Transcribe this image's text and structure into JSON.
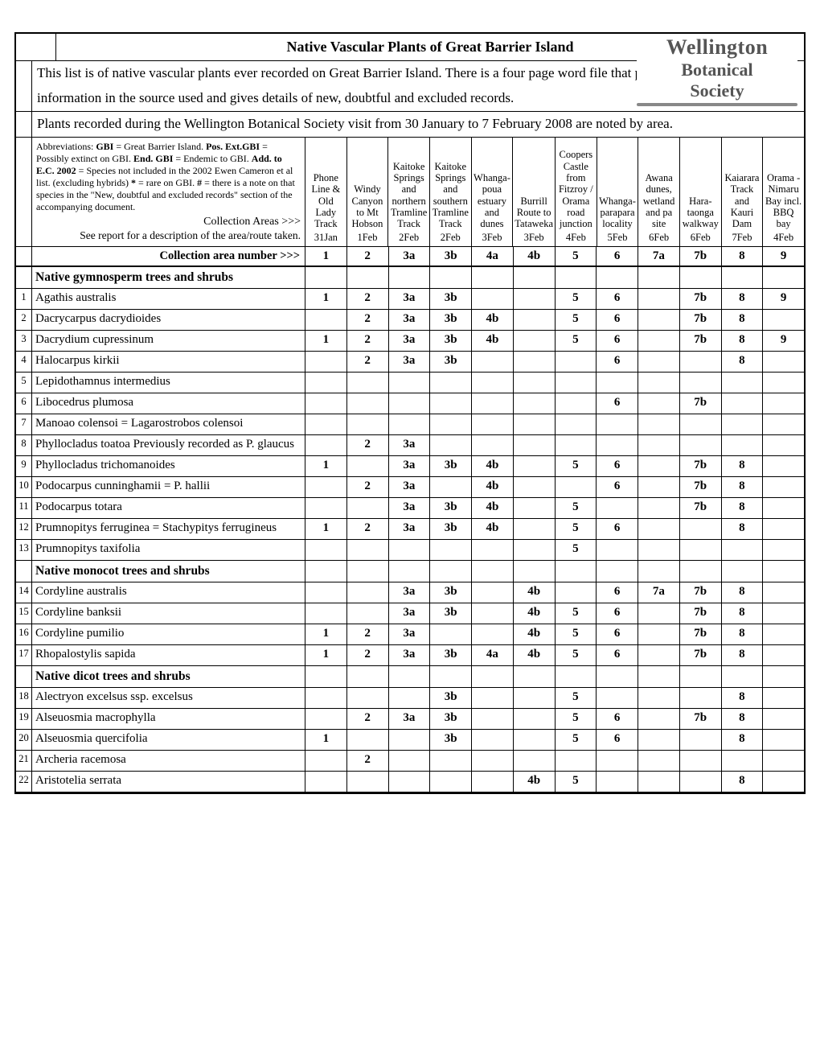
{
  "title": "Native Vascular Plants of Great Barrier Island",
  "logo": {
    "l1": "Wellington",
    "l2": "Botanical",
    "l3": "Society"
  },
  "intro1": "This list is of native vascular plants ever recorded on Great Barrier Island.  There is a four page word file that provides",
  "intro2": "information in the source used and gives details of new, doubtful and  excluded records.",
  "intro3": "Plants recorded during the Wellington Botanical Society visit from 30 January to 7 February 2008 are noted by area.",
  "abbrev_html": "Abbreviations: <b>GBI</b> = Great Barrier Island.  <b>Pos. Ext.GBI</b> = Possibly extinct on GBI. <b>End. GBI</b> = Endemic to GBI.  <b>Add. to E.C. 2002</b> = Species not included in the 2002 Ewen Cameron et al list. (excluding hybrids)  <b>*</b> = rare on GBI.  <b>#</b> = there is a note on that species in the \"New, doubtful and excluded records\" section of the accompanying document.",
  "coll_areas_label": "Collection Areas >>>",
  "see_report_label": "See report for a description of the area/route taken.",
  "area_num_label": "Collection area number  >>>",
  "columns": [
    {
      "desc": "Phone Line & Old Lady Track",
      "date": "31Jan",
      "num": "1"
    },
    {
      "desc": "Windy Canyon to Mt Hobson",
      "date": "1Feb",
      "num": "2"
    },
    {
      "desc": "Kaitoke Springs and northern Tramline Track",
      "date": "2Feb",
      "num": "3a"
    },
    {
      "desc": "Kaitoke Springs and southern Tramline Track",
      "date": "2Feb",
      "num": "3b"
    },
    {
      "desc": "Whanga-poua estuary and dunes",
      "date": "3Feb",
      "num": "4a"
    },
    {
      "desc": "Burrill Route to Tataweka",
      "date": "3Feb",
      "num": "4b"
    },
    {
      "desc": "Coopers Castle from Fitzroy / Orama road junction",
      "date": "4Feb",
      "num": "5"
    },
    {
      "desc": "Whanga-parapara locality",
      "date": "5Feb",
      "num": "6"
    },
    {
      "desc": "Awana dunes, wetland and pa site",
      "date": "6Feb",
      "num": "7a"
    },
    {
      "desc": "Hara-taonga walkway",
      "date": "6Feb",
      "num": "7b"
    },
    {
      "desc": "Kaiarara Track and Kauri Dam",
      "date": "7Feb",
      "num": "8"
    },
    {
      "desc": "Orama - Nimaru Bay incl. BBQ bay",
      "date": "4Feb",
      "num": "9"
    }
  ],
  "sections": [
    {
      "title": "Native gymnosperm trees and shrubs",
      "rows": [
        {
          "n": "1",
          "name": "Agathis australis",
          "v": [
            "1",
            "2",
            "3a",
            "3b",
            "",
            "",
            "5",
            "6",
            "",
            "7b",
            "8",
            "9"
          ]
        },
        {
          "n": "2",
          "name": "Dacrycarpus dacrydioides",
          "v": [
            "",
            "2",
            "3a",
            "3b",
            "4b",
            "",
            "5",
            "6",
            "",
            "7b",
            "8",
            ""
          ]
        },
        {
          "n": "3",
          "name": "Dacrydium cupressinum",
          "v": [
            "1",
            "2",
            "3a",
            "3b",
            "4b",
            "",
            "5",
            "6",
            "",
            "7b",
            "8",
            "9"
          ]
        },
        {
          "n": "4",
          "name": "Halocarpus kirkii",
          "v": [
            "",
            "2",
            "3a",
            "3b",
            "",
            "",
            "",
            "6",
            "",
            "",
            "8",
            ""
          ]
        },
        {
          "n": "5",
          "name": "Lepidothamnus intermedius",
          "v": [
            "",
            "",
            "",
            "",
            "",
            "",
            "",
            "",
            "",
            "",
            "",
            ""
          ]
        },
        {
          "n": "6",
          "name": "Libocedrus plumosa",
          "v": [
            "",
            "",
            "",
            "",
            "",
            "",
            "",
            "6",
            "",
            "7b",
            "",
            ""
          ]
        },
        {
          "n": "7",
          "name": "Manoao colensoi   = Lagarostrobos colensoi",
          "v": [
            "",
            "",
            "",
            "",
            "",
            "",
            "",
            "",
            "",
            "",
            "",
            ""
          ]
        },
        {
          "n": "8",
          "name": "Phyllocladus toatoa   Previously recorded as  P. glaucus",
          "v": [
            "",
            "2",
            "3a",
            "",
            "",
            "",
            "",
            "",
            "",
            "",
            "",
            ""
          ]
        },
        {
          "n": "9",
          "name": "Phyllocladus trichomanoides",
          "v": [
            "1",
            "",
            "3a",
            "3b",
            "4b",
            "",
            "5",
            "6",
            "",
            "7b",
            "8",
            ""
          ]
        },
        {
          "n": "10",
          "name": "Podocarpus cunninghamii  = P. hallii",
          "v": [
            "",
            "2",
            "3a",
            "",
            "4b",
            "",
            "",
            "6",
            "",
            "7b",
            "8",
            ""
          ]
        },
        {
          "n": "11",
          "name": "Podocarpus totara",
          "v": [
            "",
            "",
            "3a",
            "3b",
            "4b",
            "",
            "5",
            "",
            "",
            "7b",
            "8",
            ""
          ]
        },
        {
          "n": "12",
          "name": "Prumnopitys ferruginea  = Stachypitys  ferrugineus",
          "v": [
            "1",
            "2",
            "3a",
            "3b",
            "4b",
            "",
            "5",
            "6",
            "",
            "",
            "8",
            ""
          ]
        },
        {
          "n": "13",
          "name": "Prumnopitys taxifolia",
          "v": [
            "",
            "",
            "",
            "",
            "",
            "",
            "5",
            "",
            "",
            "",
            "",
            ""
          ]
        }
      ]
    },
    {
      "title": "Native monocot trees and shrubs",
      "rows": [
        {
          "n": "14",
          "name": "Cordyline australis",
          "v": [
            "",
            "",
            "3a",
            "3b",
            "",
            "4b",
            "",
            "6",
            "7a",
            "7b",
            "8",
            ""
          ]
        },
        {
          "n": "15",
          "name": "Cordyline banksii",
          "v": [
            "",
            "",
            "3a",
            "3b",
            "",
            "4b",
            "5",
            "6",
            "",
            "7b",
            "8",
            ""
          ]
        },
        {
          "n": "16",
          "name": "Cordyline pumilio",
          "v": [
            "1",
            "2",
            "3a",
            "",
            "",
            "4b",
            "5",
            "6",
            "",
            "7b",
            "8",
            ""
          ]
        },
        {
          "n": "17",
          "name": "Rhopalostylis sapida",
          "v": [
            "1",
            "2",
            "3a",
            "3b",
            "4a",
            "4b",
            "5",
            "6",
            "",
            "7b",
            "8",
            ""
          ]
        }
      ]
    },
    {
      "title": "Native dicot trees and shrubs",
      "rows": [
        {
          "n": "18",
          "name": "Alectryon excelsus ssp. excelsus",
          "v": [
            "",
            "",
            "",
            "3b",
            "",
            "",
            "5",
            "",
            "",
            "",
            "8",
            ""
          ]
        },
        {
          "n": "19",
          "name": "Alseuosmia macrophylla",
          "v": [
            "",
            "2",
            "3a",
            "3b",
            "",
            "",
            "5",
            "6",
            "",
            "7b",
            "8",
            ""
          ]
        },
        {
          "n": "20",
          "name": "Alseuosmia quercifolia",
          "v": [
            "1",
            "",
            "",
            "3b",
            "",
            "",
            "5",
            "6",
            "",
            "",
            "8",
            ""
          ]
        },
        {
          "n": "21",
          "name": "Archeria racemosa",
          "v": [
            "",
            "2",
            "",
            "",
            "",
            "",
            "",
            "",
            "",
            "",
            "",
            ""
          ]
        },
        {
          "n": "22",
          "name": "Aristotelia serrata",
          "v": [
            "",
            "",
            "",
            "",
            "",
            "4b",
            "5",
            "",
            "",
            "",
            "8",
            ""
          ]
        }
      ]
    }
  ]
}
